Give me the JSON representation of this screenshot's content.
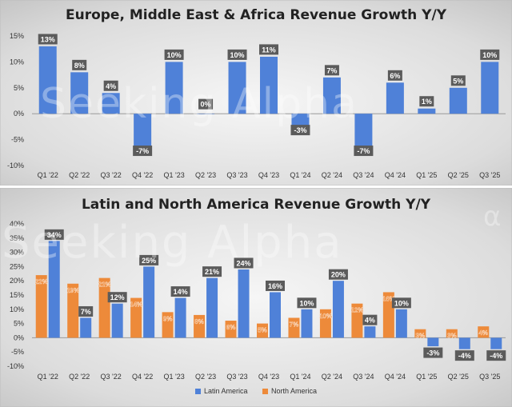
{
  "chart_data": [
    {
      "type": "bar",
      "title": "Europe, Middle East & Africa Revenue Growth Y/Y",
      "categories": [
        "Q1 '22",
        "Q2 '22",
        "Q3 '22",
        "Q4 '22",
        "Q1 '23",
        "Q2 '23",
        "Q3 '23",
        "Q4 '23",
        "Q1 '24",
        "Q2 '24",
        "Q3 '24",
        "Q4 '24",
        "Q1 '25",
        "Q2 '25",
        "Q3 '25"
      ],
      "series": [
        {
          "name": "EMEA",
          "color": "#4f81d8",
          "values": [
            13,
            8,
            4,
            -7,
            10,
            0,
            10,
            11,
            -3,
            7,
            -7,
            6,
            1,
            5,
            10
          ]
        }
      ],
      "ylim": [
        -10,
        15
      ],
      "yticks": [
        -10,
        -5,
        0,
        5,
        10,
        15
      ],
      "ytick_labels": [
        "-10%",
        "-5%",
        "0%",
        "5%",
        "10%",
        "15%"
      ],
      "data_labels": [
        "13%",
        "8%",
        "4%",
        "-7%",
        "10%",
        "0%",
        "10%",
        "11%",
        "-3%",
        "7%",
        "-7%",
        "6%",
        "1%",
        "5%",
        "10%"
      ],
      "xlabel": "",
      "ylabel": ""
    },
    {
      "type": "bar",
      "title": "Latin and North America Revenue Growth Y/Y",
      "categories": [
        "Q1 '22",
        "Q2 '22",
        "Q3 '22",
        "Q4 '22",
        "Q1 '23",
        "Q2 '23",
        "Q3 '23",
        "Q4 '23",
        "Q1 '24",
        "Q2 '24",
        "Q3 '24",
        "Q4 '24",
        "Q1 '25",
        "Q2 '25",
        "Q3 '25"
      ],
      "series": [
        {
          "name": "North America",
          "color": "#ed8a3a",
          "values": [
            22,
            19,
            21,
            14,
            9,
            8,
            6,
            5,
            7,
            10,
            12,
            16,
            3,
            3,
            4
          ],
          "labels": [
            "22%",
            "19%",
            "21%",
            "14%",
            "9%",
            "8%",
            "6%",
            "5%",
            "7%",
            "10%",
            "12%",
            "16%",
            "3%",
            "3%",
            "4%"
          ]
        },
        {
          "name": "Latin America",
          "color": "#4f81d8",
          "values": [
            34,
            7,
            12,
            25,
            14,
            21,
            24,
            16,
            10,
            20,
            4,
            10,
            -3,
            -4,
            -4
          ],
          "labels": [
            "34%",
            "7%",
            "12%",
            "25%",
            "14%",
            "21%",
            "24%",
            "16%",
            "10%",
            "20%",
            "4%",
            "10%",
            "-3%",
            "-4%",
            "-4%"
          ]
        }
      ],
      "legend_order": [
        "Latin America",
        "North America"
      ],
      "ylim": [
        -10,
        40
      ],
      "yticks": [
        -10,
        -5,
        0,
        5,
        10,
        15,
        20,
        25,
        30,
        35,
        40
      ],
      "ytick_labels": [
        "-10%",
        "-5%",
        "0%",
        "5%",
        "10%",
        "15%",
        "20%",
        "25%",
        "30%",
        "35%",
        "40%"
      ],
      "xlabel": "",
      "ylabel": ""
    }
  ],
  "watermark": {
    "text1": "Seeking Alpha",
    "text2": "Seeking Alpha",
    "mark": "α"
  },
  "legend": {
    "latin": "Latin America",
    "north": "North America"
  }
}
